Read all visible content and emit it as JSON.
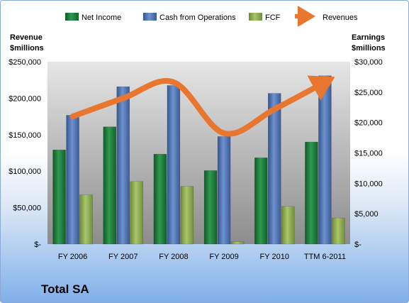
{
  "chart_data": {
    "type": "bar",
    "title": "Total SA",
    "categories": [
      "FY 2006",
      "FY 2007",
      "FY 2008",
      "FY 2009",
      "FY 2010",
      "TTM 6-2011"
    ],
    "series": [
      {
        "name": "Net Income",
        "type": "bar",
        "axis": "right",
        "color": "#1f7a3a",
        "values": [
          15500,
          19300,
          14800,
          12100,
          14200,
          16800
        ]
      },
      {
        "name": "Cash from Operations",
        "type": "bar",
        "axis": "right",
        "color": "#4a6fb0",
        "values": [
          21200,
          25900,
          26100,
          17700,
          24800,
          27700
        ]
      },
      {
        "name": "FCF",
        "type": "bar",
        "axis": "right",
        "color": "#8fae4e",
        "values": [
          8100,
          10300,
          9500,
          400,
          6200,
          4300
        ]
      },
      {
        "name": "Revenues",
        "type": "line",
        "axis": "left",
        "color": "#e8762e",
        "values": [
          175000,
          200000,
          222000,
          152000,
          185000,
          222000
        ]
      }
    ],
    "left_axis": {
      "label_line1": "Revenue",
      "label_line2": "$millions",
      "ylim": [
        0,
        250000
      ],
      "ticks": [
        "$-",
        "$50,000",
        "$100,000",
        "$150,000",
        "$200,000",
        "$250,000"
      ]
    },
    "right_axis": {
      "label_line1": "Earnings",
      "label_line2": "$millions",
      "ylim": [
        0,
        30000
      ],
      "ticks": [
        "$-",
        "$5,000",
        "$10,000",
        "$15,000",
        "$20,000",
        "$25,000",
        "$30,000"
      ]
    },
    "grid": false,
    "legend_position": "top"
  },
  "colors": {
    "plot_top": "#e6e6e6",
    "plot_bottom": "#8c8c8c"
  }
}
